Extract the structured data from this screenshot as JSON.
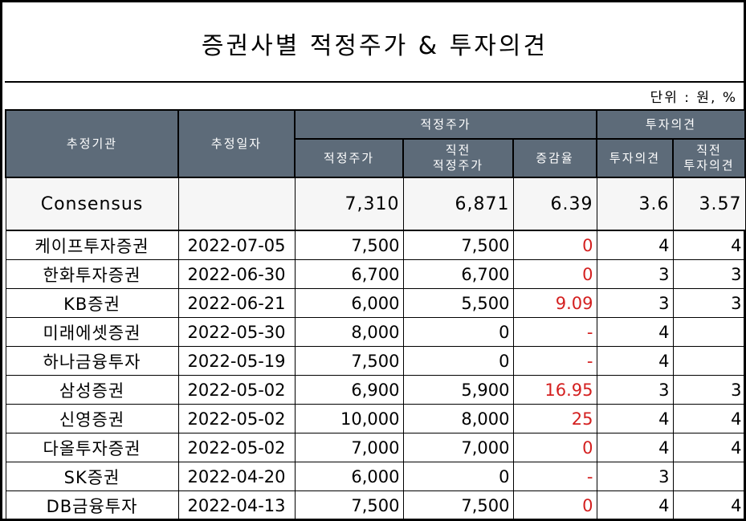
{
  "title": "증권사별 적정주가 & 투자의견",
  "unit": "단위 : 원, %",
  "headers": {
    "agency": "추정기관",
    "date": "추정일자",
    "target_group": "적정주가",
    "opinion_group": "투자의견",
    "target": "적정주가",
    "prev_target": "직전\n적정주가",
    "change": "증감율",
    "opinion": "투자의견",
    "prev_opinion": "직전\n투자의견"
  },
  "consensus": {
    "name": "Consensus",
    "date": "",
    "target": "7,310",
    "prev_target": "6,871",
    "change": "6.39",
    "opinion": "3.6",
    "prev_opinion": "3.57"
  },
  "rows": [
    {
      "name": "케이프투자증권",
      "date": "2022-07-05",
      "target": "7,500",
      "prev_target": "7,500",
      "change": "0",
      "opinion": "4",
      "prev_opinion": "4"
    },
    {
      "name": "한화투자증권",
      "date": "2022-06-30",
      "target": "6,700",
      "prev_target": "6,700",
      "change": "0",
      "opinion": "3",
      "prev_opinion": "3"
    },
    {
      "name": "KB증권",
      "date": "2022-06-21",
      "target": "6,000",
      "prev_target": "5,500",
      "change": "9.09",
      "opinion": "3",
      "prev_opinion": "3"
    },
    {
      "name": "미래에셋증권",
      "date": "2022-05-30",
      "target": "8,000",
      "prev_target": "0",
      "change": "-",
      "opinion": "4",
      "prev_opinion": ""
    },
    {
      "name": "하나금융투자",
      "date": "2022-05-19",
      "target": "7,500",
      "prev_target": "0",
      "change": "-",
      "opinion": "4",
      "prev_opinion": ""
    },
    {
      "name": "삼성증권",
      "date": "2022-05-02",
      "target": "6,900",
      "prev_target": "5,900",
      "change": "16.95",
      "opinion": "3",
      "prev_opinion": "3"
    },
    {
      "name": "신영증권",
      "date": "2022-05-02",
      "target": "10,000",
      "prev_target": "8,000",
      "change": "25",
      "opinion": "4",
      "prev_opinion": "4"
    },
    {
      "name": "다올투자증권",
      "date": "2022-05-02",
      "target": "7,000",
      "prev_target": "7,000",
      "change": "0",
      "opinion": "4",
      "prev_opinion": "4"
    },
    {
      "name": "SK증권",
      "date": "2022-04-20",
      "target": "6,000",
      "prev_target": "0",
      "change": "-",
      "opinion": "3",
      "prev_opinion": ""
    },
    {
      "name": "DB금융투자",
      "date": "2022-04-13",
      "target": "7,500",
      "prev_target": "7,500",
      "change": "0",
      "opinion": "4",
      "prev_opinion": "4"
    }
  ],
  "colors": {
    "header_bg": "#5d6b79",
    "change_text": "#d42020"
  }
}
